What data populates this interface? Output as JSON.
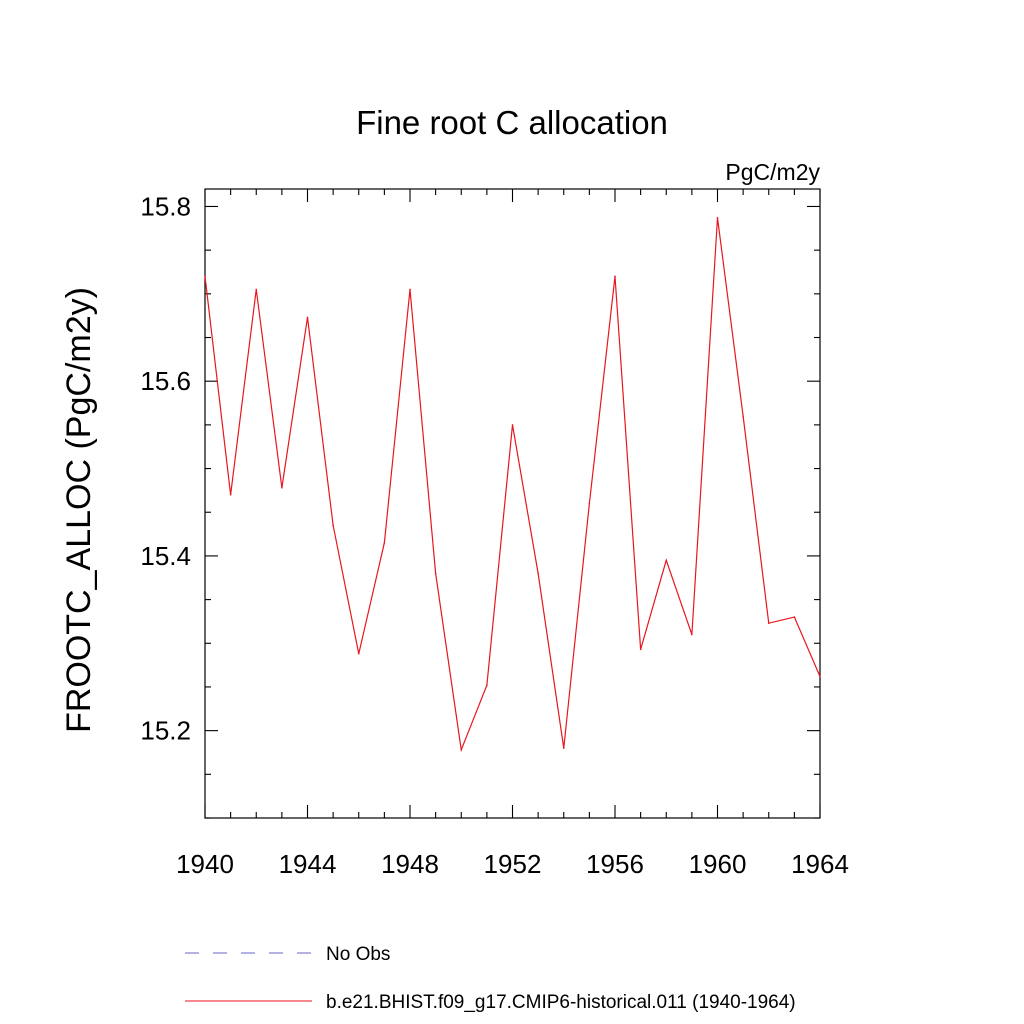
{
  "chart_data": {
    "type": "line",
    "title": "Fine root C allocation",
    "units_label": "PgC/m2y",
    "ylabel": "FROOTC_ALLOC  (PgC/m2y)",
    "xlabel": "",
    "xlim": [
      1940,
      1964
    ],
    "ylim": [
      15.1,
      15.82
    ],
    "x_ticks": [
      1940,
      1944,
      1948,
      1952,
      1956,
      1960,
      1964
    ],
    "y_ticks": [
      15.2,
      15.4,
      15.6,
      15.8
    ],
    "grid": false,
    "legend_position": "bottom",
    "series": [
      {
        "name": "No Obs",
        "style": "dashed",
        "color": "#6a64c8",
        "x": [],
        "y": []
      },
      {
        "name": "b.e21.BHIST.f09_g17.CMIP6-historical.011 (1940-1964)",
        "style": "solid",
        "color": "#e8161e",
        "x": [
          1940,
          1941,
          1942,
          1943,
          1944,
          1945,
          1946,
          1947,
          1948,
          1949,
          1950,
          1951,
          1952,
          1953,
          1954,
          1955,
          1956,
          1957,
          1958,
          1959,
          1960,
          1961,
          1962,
          1963,
          1964
        ],
        "y": [
          15.72,
          15.47,
          15.705,
          15.478,
          15.673,
          15.435,
          15.288,
          15.415,
          15.705,
          15.38,
          15.178,
          15.252,
          15.55,
          15.38,
          15.18,
          15.46,
          15.72,
          15.293,
          15.395,
          15.31,
          15.787,
          15.56,
          15.323,
          15.33,
          15.262
        ]
      }
    ]
  }
}
